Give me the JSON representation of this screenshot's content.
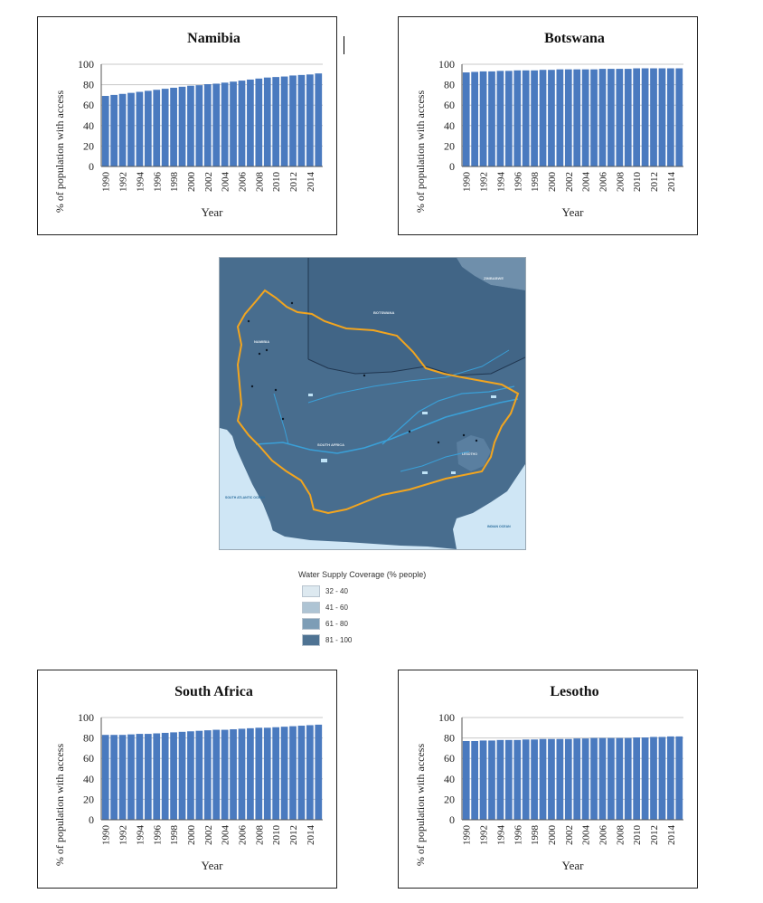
{
  "chart_data": [
    {
      "id": "namibia",
      "type": "bar",
      "title": "Namibia",
      "xlabel": "Year",
      "ylabel": "% of population with access",
      "ylim": [
        0,
        100
      ],
      "yticks": [
        0,
        20,
        40,
        60,
        80,
        100
      ],
      "xtick_labels": [
        "1990",
        "1992",
        "1994",
        "1996",
        "1998",
        "2000",
        "2002",
        "2004",
        "2006",
        "2008",
        "2010",
        "2012",
        "2014"
      ],
      "grid": "horizontal",
      "color": "#4a7abf",
      "categories": [
        "1990",
        "1991",
        "1992",
        "1993",
        "1994",
        "1995",
        "1996",
        "1997",
        "1998",
        "1999",
        "2000",
        "2001",
        "2002",
        "2003",
        "2004",
        "2005",
        "2006",
        "2007",
        "2008",
        "2009",
        "2010",
        "2011",
        "2012",
        "2013",
        "2014",
        "2015"
      ],
      "values": [
        69,
        70,
        71,
        72,
        73,
        74,
        75,
        76,
        77,
        78,
        79,
        79.5,
        80.5,
        81,
        82,
        83,
        84,
        85,
        86,
        87,
        87.5,
        88,
        89,
        89.5,
        90,
        91
      ]
    },
    {
      "id": "botswana",
      "type": "bar",
      "title": "Botswana",
      "xlabel": "Year",
      "ylabel": "% of population with access",
      "ylim": [
        0,
        100
      ],
      "yticks": [
        0,
        20,
        40,
        60,
        80,
        100
      ],
      "xtick_labels": [
        "1990",
        "1992",
        "1994",
        "1996",
        "1998",
        "2000",
        "2002",
        "2004",
        "2006",
        "2008",
        "2010",
        "2012",
        "2014"
      ],
      "grid": "horizontal",
      "color": "#4a7abf",
      "categories": [
        "1990",
        "1991",
        "1992",
        "1993",
        "1994",
        "1995",
        "1996",
        "1997",
        "1998",
        "1999",
        "2000",
        "2001",
        "2002",
        "2003",
        "2004",
        "2005",
        "2006",
        "2007",
        "2008",
        "2009",
        "2010",
        "2011",
        "2012",
        "2013",
        "2014",
        "2015"
      ],
      "values": [
        92,
        92.5,
        93,
        93,
        93.5,
        93.5,
        94,
        94,
        94,
        94.5,
        94.5,
        95,
        95,
        95,
        95,
        95,
        95.5,
        95.5,
        95.5,
        95.5,
        96,
        96,
        96,
        96,
        96,
        96
      ]
    },
    {
      "id": "southafrica",
      "type": "bar",
      "title": "South Africa",
      "xlabel": "Year",
      "ylabel": "% of population with access",
      "ylim": [
        0,
        100
      ],
      "yticks": [
        0,
        20,
        40,
        60,
        80,
        100
      ],
      "xtick_labels": [
        "1990",
        "1992",
        "1994",
        "1996",
        "1998",
        "2000",
        "2002",
        "2004",
        "2006",
        "2008",
        "2010",
        "2012",
        "2014"
      ],
      "grid": "horizontal",
      "color": "#4a7abf",
      "categories": [
        "1990",
        "1991",
        "1992",
        "1993",
        "1994",
        "1995",
        "1996",
        "1997",
        "1998",
        "1999",
        "2000",
        "2001",
        "2002",
        "2003",
        "2004",
        "2005",
        "2006",
        "2007",
        "2008",
        "2009",
        "2010",
        "2011",
        "2012",
        "2013",
        "2014",
        "2015"
      ],
      "values": [
        83,
        83,
        83,
        83.5,
        84,
        84,
        84.5,
        85,
        85.5,
        86,
        86.5,
        87,
        87.5,
        88,
        88,
        88.5,
        89,
        89.5,
        90,
        90,
        90.5,
        91,
        91.5,
        92,
        92.5,
        93
      ]
    },
    {
      "id": "lesotho",
      "type": "bar",
      "title": "Lesotho",
      "xlabel": "Year",
      "ylabel": "% of population with access",
      "ylim": [
        0,
        100
      ],
      "yticks": [
        0,
        20,
        40,
        60,
        80,
        100
      ],
      "xtick_labels": [
        "1990",
        "1992",
        "1994",
        "1996",
        "1998",
        "2000",
        "2002",
        "2004",
        "2006",
        "2008",
        "2010",
        "2012",
        "2014"
      ],
      "grid": "horizontal",
      "color": "#4a7abf",
      "categories": [
        "1990",
        "1991",
        "1992",
        "1993",
        "1994",
        "1995",
        "1996",
        "1997",
        "1998",
        "1999",
        "2000",
        "2001",
        "2002",
        "2003",
        "2004",
        "2005",
        "2006",
        "2007",
        "2008",
        "2009",
        "2010",
        "2011",
        "2012",
        "2013",
        "2014",
        "2015"
      ],
      "values": [
        77,
        77,
        77.5,
        77.5,
        78,
        78,
        78,
        78.5,
        78.5,
        79,
        79,
        79,
        79,
        79.5,
        79.5,
        80,
        80,
        80,
        80,
        80,
        80.5,
        80.5,
        81,
        81,
        81.5,
        81.5
      ]
    }
  ],
  "map": {
    "colors": {
      "sea": "#cfe6f5",
      "land_dark": "#3f6384",
      "land_mid": "#4f7596",
      "basin_outline": "#f2a51f",
      "rivers": "#3aa0d8"
    },
    "labels": [
      {
        "key": "zimbabwe",
        "text": "ZIMBABWE"
      },
      {
        "key": "botswana",
        "text": "BOTSWANA"
      },
      {
        "key": "namibia",
        "text": "NAMIBIA"
      },
      {
        "key": "southafrica",
        "text": "SOUTH AFRICA"
      },
      {
        "key": "lesotho",
        "text": "LESOTHO"
      },
      {
        "key": "atlantic",
        "text": "SOUTH ATLANTIC OCEAN"
      },
      {
        "key": "indian",
        "text": "INDIAN OCEAN"
      }
    ]
  },
  "legend": {
    "title": "Water Supply Coverage (% people)",
    "items": [
      {
        "label": "32 - 40",
        "color": "#dde9f0"
      },
      {
        "label": "41 - 60",
        "color": "#aec4d4"
      },
      {
        "label": "61 - 80",
        "color": "#7d9db6"
      },
      {
        "label": "81 - 100",
        "color": "#4f7393"
      }
    ]
  }
}
